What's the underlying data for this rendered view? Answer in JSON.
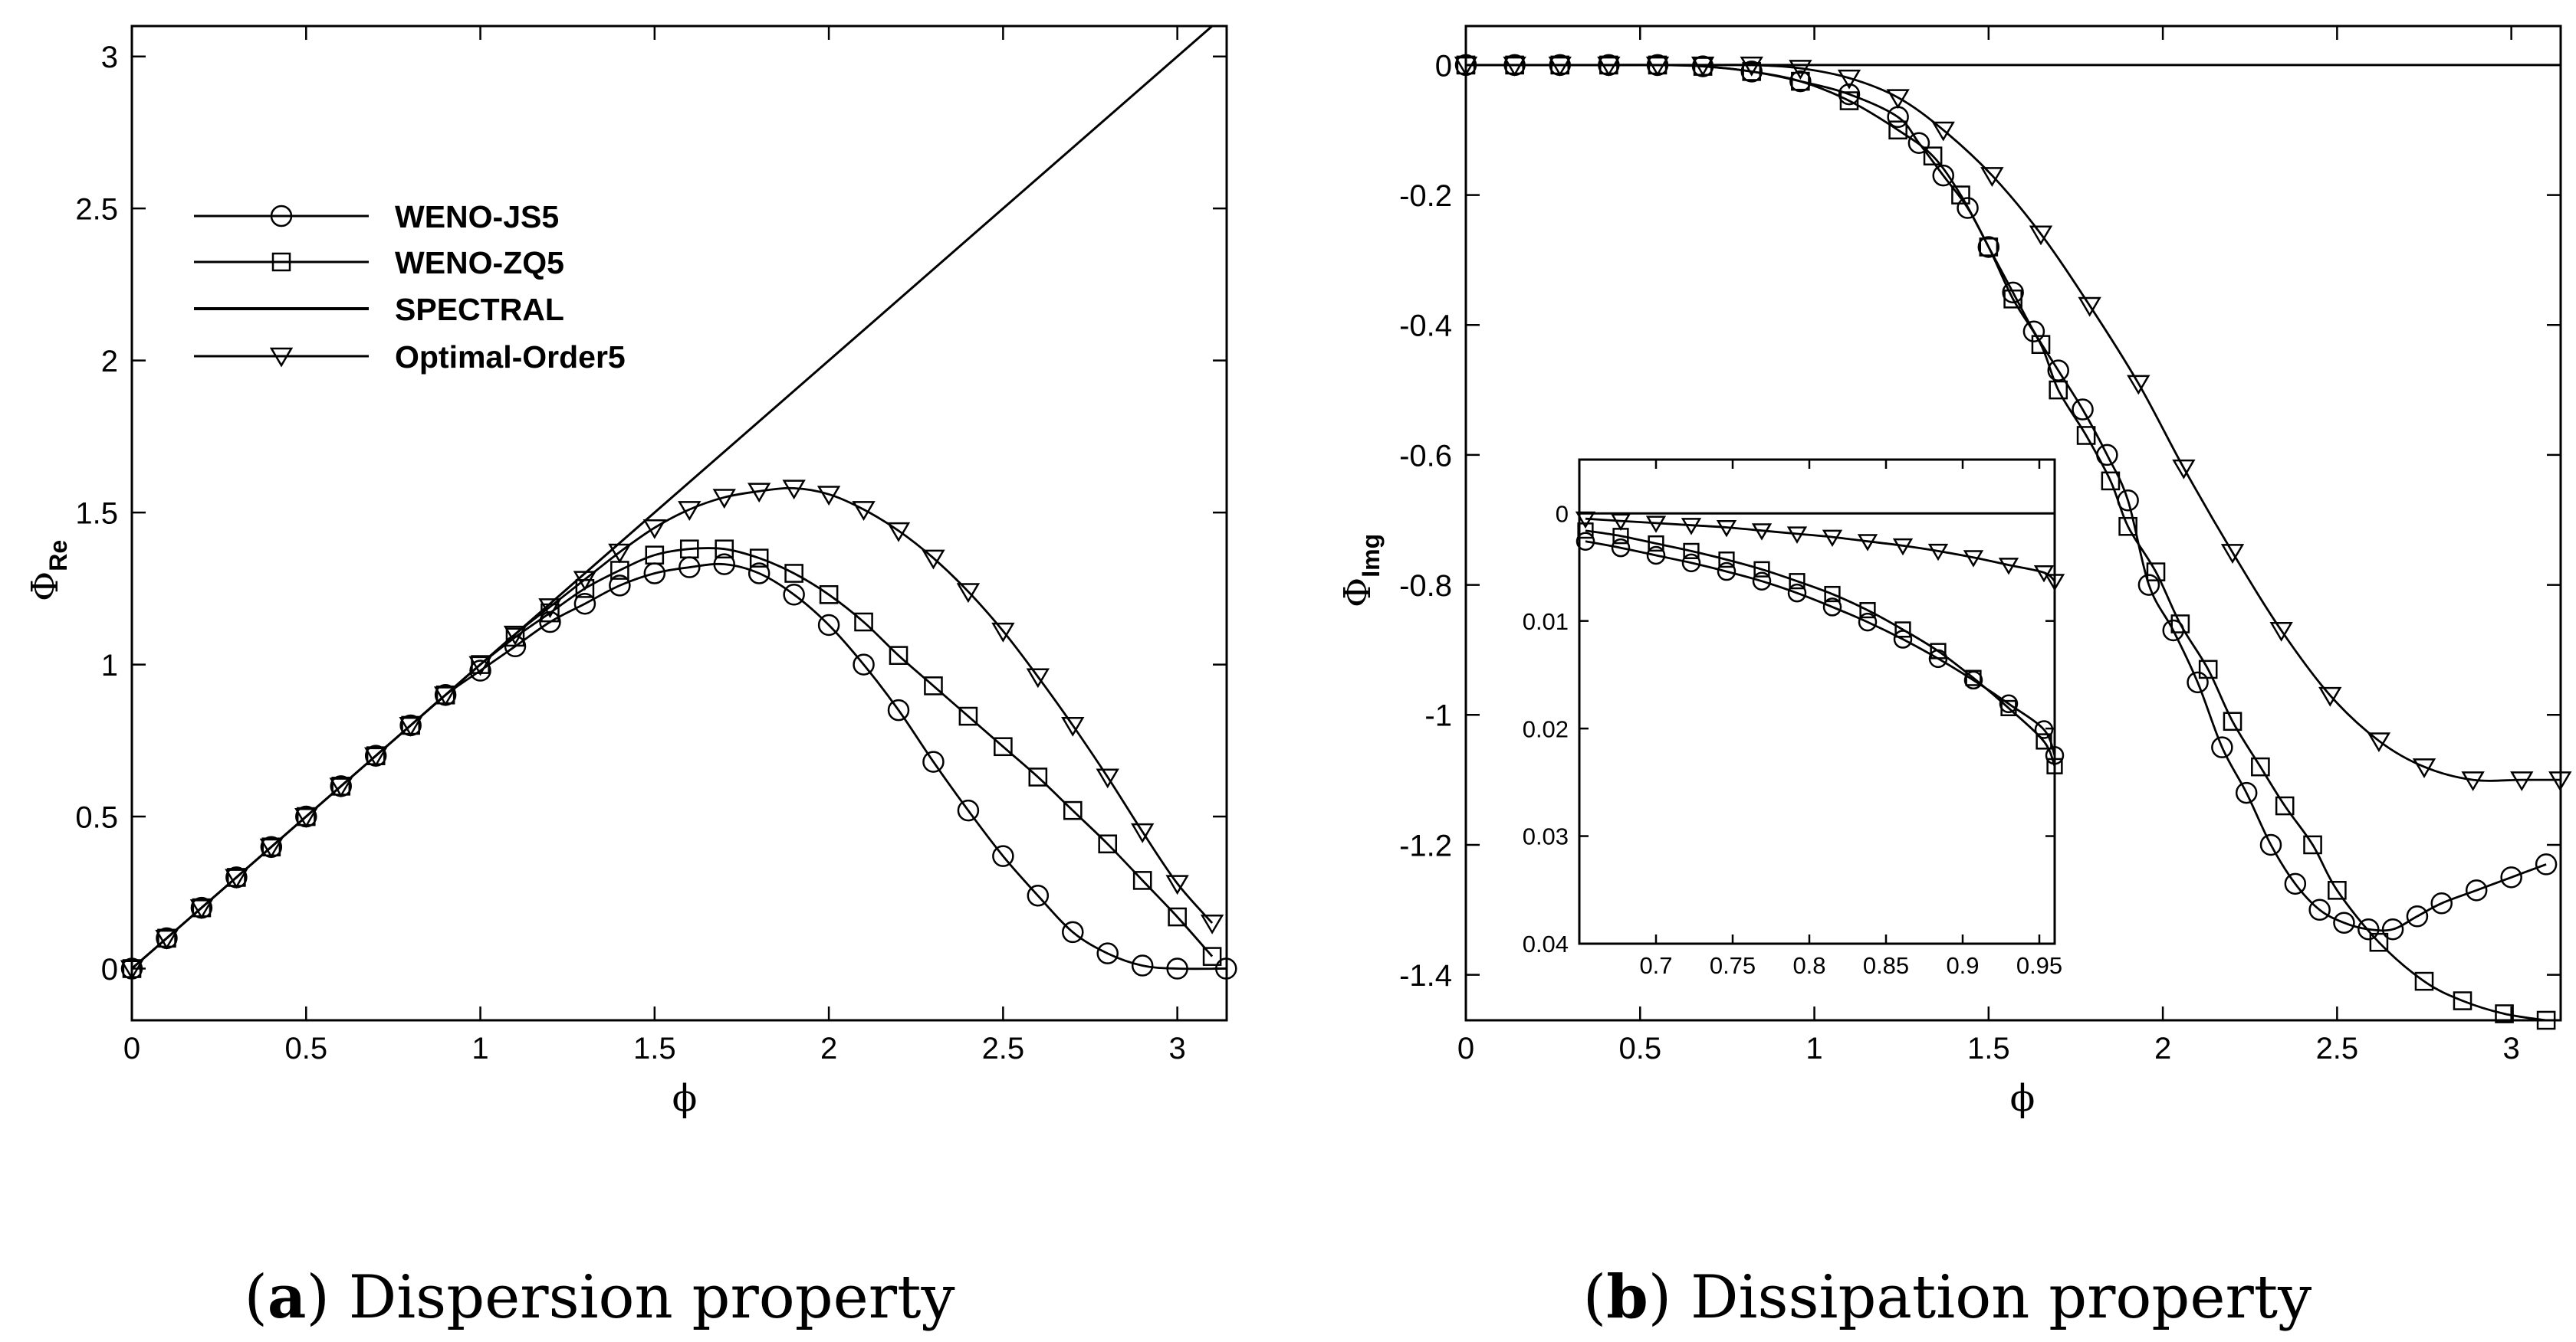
{
  "chart_data": [
    {
      "panel": "a",
      "type": "line",
      "caption_letter": "a",
      "caption_text": "Dispersion property",
      "xlabel": "ϕ",
      "ylabel_main": "Φ",
      "ylabel_sub": "Re",
      "xlim": [
        0,
        3.14159
      ],
      "ylim": [
        -0.17,
        3.1
      ],
      "xticks": [
        "0",
        "0.5",
        "1",
        "1.5",
        "2",
        "2.5",
        "3"
      ],
      "yticks": [
        "0",
        "0.5",
        "1",
        "1.5",
        "2",
        "2.5",
        "3"
      ],
      "legend_position": "top-left",
      "legend": [
        "WENO-JS5",
        "WENO-ZQ5",
        "SPECTRAL",
        "Optimal-Order5"
      ],
      "grid": false,
      "series": [
        {
          "name": "WENO-JS5",
          "marker": "circle",
          "x": [
            0,
            0.1,
            0.2,
            0.3,
            0.4,
            0.5,
            0.6,
            0.7,
            0.8,
            0.9,
            1.0,
            1.1,
            1.2,
            1.3,
            1.4,
            1.5,
            1.6,
            1.7,
            1.8,
            1.9,
            2.0,
            2.1,
            2.2,
            2.3,
            2.4,
            2.5,
            2.6,
            2.7,
            2.8,
            2.9,
            3.0,
            3.14
          ],
          "y": [
            0,
            0.1,
            0.2,
            0.3,
            0.4,
            0.5,
            0.6,
            0.7,
            0.8,
            0.9,
            0.98,
            1.06,
            1.14,
            1.2,
            1.26,
            1.3,
            1.32,
            1.33,
            1.3,
            1.23,
            1.13,
            1.0,
            0.85,
            0.68,
            0.52,
            0.37,
            0.24,
            0.12,
            0.05,
            0.01,
            0.0,
            0.0
          ]
        },
        {
          "name": "WENO-ZQ5",
          "marker": "square",
          "x": [
            0,
            0.1,
            0.2,
            0.3,
            0.4,
            0.5,
            0.6,
            0.7,
            0.8,
            0.9,
            1.0,
            1.1,
            1.2,
            1.3,
            1.4,
            1.5,
            1.6,
            1.7,
            1.8,
            1.9,
            2.0,
            2.1,
            2.2,
            2.3,
            2.4,
            2.5,
            2.6,
            2.7,
            2.8,
            2.9,
            3.0,
            3.1
          ],
          "y": [
            0,
            0.1,
            0.2,
            0.3,
            0.4,
            0.5,
            0.6,
            0.7,
            0.8,
            0.9,
            1.0,
            1.09,
            1.17,
            1.25,
            1.31,
            1.36,
            1.38,
            1.38,
            1.35,
            1.3,
            1.23,
            1.14,
            1.03,
            0.93,
            0.83,
            0.73,
            0.63,
            0.52,
            0.41,
            0.29,
            0.17,
            0.04
          ]
        },
        {
          "name": "SPECTRAL",
          "marker": "none",
          "x": [
            0,
            3.14159
          ],
          "y": [
            0,
            3.14159
          ]
        },
        {
          "name": "Optimal-Order5",
          "marker": "triangle",
          "x": [
            0,
            0.1,
            0.2,
            0.3,
            0.4,
            0.5,
            0.6,
            0.7,
            0.8,
            0.9,
            1.0,
            1.1,
            1.2,
            1.3,
            1.4,
            1.5,
            1.6,
            1.7,
            1.8,
            1.9,
            2.0,
            2.1,
            2.2,
            2.3,
            2.4,
            2.5,
            2.6,
            2.7,
            2.8,
            2.9,
            3.0,
            3.1
          ],
          "y": [
            0,
            0.1,
            0.2,
            0.3,
            0.4,
            0.5,
            0.6,
            0.7,
            0.8,
            0.9,
            1.0,
            1.1,
            1.19,
            1.28,
            1.37,
            1.45,
            1.51,
            1.55,
            1.57,
            1.58,
            1.56,
            1.51,
            1.44,
            1.35,
            1.24,
            1.11,
            0.96,
            0.8,
            0.63,
            0.45,
            0.28,
            0.15
          ]
        }
      ]
    },
    {
      "panel": "b",
      "type": "line",
      "caption_letter": "b",
      "caption_text": "Dissipation property",
      "xlabel": "ϕ",
      "ylabel_main": "Φ",
      "ylabel_sub": "Img",
      "xlim": [
        0,
        3.14159
      ],
      "ylim": [
        -1.47,
        0.06
      ],
      "xticks": [
        "0",
        "0.5",
        "1",
        "1.5",
        "2",
        "2.5",
        "3"
      ],
      "yticks": [
        "0",
        "-0.2",
        "-0.4",
        "-0.6",
        "-0.8",
        "-1",
        "-1.2",
        "-1.4"
      ],
      "grid": false,
      "series": [
        {
          "name": "WENO-JS5",
          "marker": "circle",
          "x": [
            0,
            0.14,
            0.27,
            0.41,
            0.55,
            0.68,
            0.82,
            0.96,
            1.1,
            1.24,
            1.3,
            1.37,
            1.44,
            1.5,
            1.57,
            1.63,
            1.7,
            1.77,
            1.84,
            1.9,
            1.96,
            2.03,
            2.1,
            2.17,
            2.24,
            2.31,
            2.38,
            2.45,
            2.52,
            2.59,
            2.66,
            2.73,
            2.8,
            2.9,
            3.0,
            3.1
          ],
          "y": [
            0,
            0,
            0,
            0,
            0,
            -0.002,
            -0.01,
            -0.025,
            -0.045,
            -0.08,
            -0.12,
            -0.17,
            -0.22,
            -0.28,
            -0.35,
            -0.41,
            -0.47,
            -0.53,
            -0.6,
            -0.67,
            -0.8,
            -0.87,
            -0.95,
            -1.05,
            -1.12,
            -1.2,
            -1.26,
            -1.3,
            -1.32,
            -1.33,
            -1.33,
            -1.31,
            -1.29,
            -1.27,
            -1.25,
            -1.23
          ]
        },
        {
          "name": "WENO-ZQ5",
          "marker": "square",
          "x": [
            0,
            0.14,
            0.27,
            0.41,
            0.55,
            0.68,
            0.82,
            0.96,
            1.1,
            1.24,
            1.34,
            1.42,
            1.5,
            1.57,
            1.65,
            1.7,
            1.78,
            1.85,
            1.9,
            1.98,
            2.05,
            2.13,
            2.2,
            2.28,
            2.35,
            2.43,
            2.5,
            2.62,
            2.75,
            2.86,
            2.98,
            3.1
          ],
          "y": [
            0,
            0,
            0,
            0,
            0,
            -0.002,
            -0.01,
            -0.025,
            -0.055,
            -0.1,
            -0.14,
            -0.2,
            -0.28,
            -0.36,
            -0.43,
            -0.5,
            -0.57,
            -0.64,
            -0.71,
            -0.78,
            -0.86,
            -0.93,
            -1.01,
            -1.08,
            -1.14,
            -1.2,
            -1.27,
            -1.35,
            -1.41,
            -1.44,
            -1.46,
            -1.47
          ]
        },
        {
          "name": "SPECTRAL",
          "marker": "none",
          "x": [
            0,
            3.14159
          ],
          "y": [
            0,
            0
          ]
        },
        {
          "name": "Optimal-Order5",
          "marker": "triangle",
          "x": [
            0,
            0.14,
            0.27,
            0.41,
            0.55,
            0.68,
            0.82,
            0.96,
            1.1,
            1.24,
            1.37,
            1.51,
            1.65,
            1.79,
            1.93,
            2.06,
            2.2,
            2.34,
            2.48,
            2.62,
            2.75,
            2.89,
            3.03,
            3.14
          ],
          "y": [
            0,
            0,
            0,
            0,
            0,
            0,
            0,
            -0.005,
            -0.02,
            -0.05,
            -0.1,
            -0.17,
            -0.26,
            -0.37,
            -0.49,
            -0.62,
            -0.75,
            -0.87,
            -0.97,
            -1.04,
            -1.08,
            -1.1,
            -1.1,
            -1.1
          ]
        }
      ],
      "inset": {
        "xlim": [
          0.65,
          0.96
        ],
        "ylim": [
          0.04,
          -0.005
        ],
        "xticks": [
          "0.7",
          "0.75",
          "0.8",
          "0.85",
          "0.9",
          "0.95"
        ],
        "yticks": [
          "0",
          "0.01",
          "0.02",
          "0.03",
          "0.04"
        ],
        "series": [
          {
            "name": "WENO-JS5",
            "marker": "circle",
            "x": [
              0.654,
              0.677,
              0.7,
              0.723,
              0.746,
              0.769,
              0.792,
              0.815,
              0.838,
              0.861,
              0.884,
              0.907,
              0.93,
              0.953,
              0.96
            ],
            "y": [
              0.0026,
              0.0032,
              0.0039,
              0.0046,
              0.0054,
              0.0063,
              0.0074,
              0.0087,
              0.0101,
              0.0117,
              0.0135,
              0.0155,
              0.0177,
              0.0201,
              0.0225
            ]
          },
          {
            "name": "WENO-ZQ5",
            "marker": "square",
            "x": [
              0.654,
              0.677,
              0.7,
              0.723,
              0.746,
              0.769,
              0.792,
              0.815,
              0.838,
              0.861,
              0.884,
              0.907,
              0.93,
              0.953,
              0.96
            ],
            "y": [
              0.0016,
              0.0021,
              0.0028,
              0.0035,
              0.0043,
              0.0052,
              0.0063,
              0.0075,
              0.009,
              0.0108,
              0.0128,
              0.0153,
              0.0181,
              0.0212,
              0.0235
            ]
          },
          {
            "name": "SPECTRAL",
            "marker": "none",
            "x": [
              0.65,
              0.96
            ],
            "y": [
              0,
              0
            ]
          },
          {
            "name": "Optimal-Order5",
            "marker": "triangle",
            "x": [
              0.654,
              0.677,
              0.7,
              0.723,
              0.746,
              0.769,
              0.792,
              0.815,
              0.838,
              0.861,
              0.884,
              0.907,
              0.93,
              0.953,
              0.96
            ],
            "y": [
              0.0005,
              0.0007,
              0.0009,
              0.0011,
              0.0013,
              0.0016,
              0.0019,
              0.0022,
              0.0026,
              0.003,
              0.0035,
              0.0041,
              0.0048,
              0.0055,
              0.0063
            ]
          }
        ]
      }
    }
  ]
}
